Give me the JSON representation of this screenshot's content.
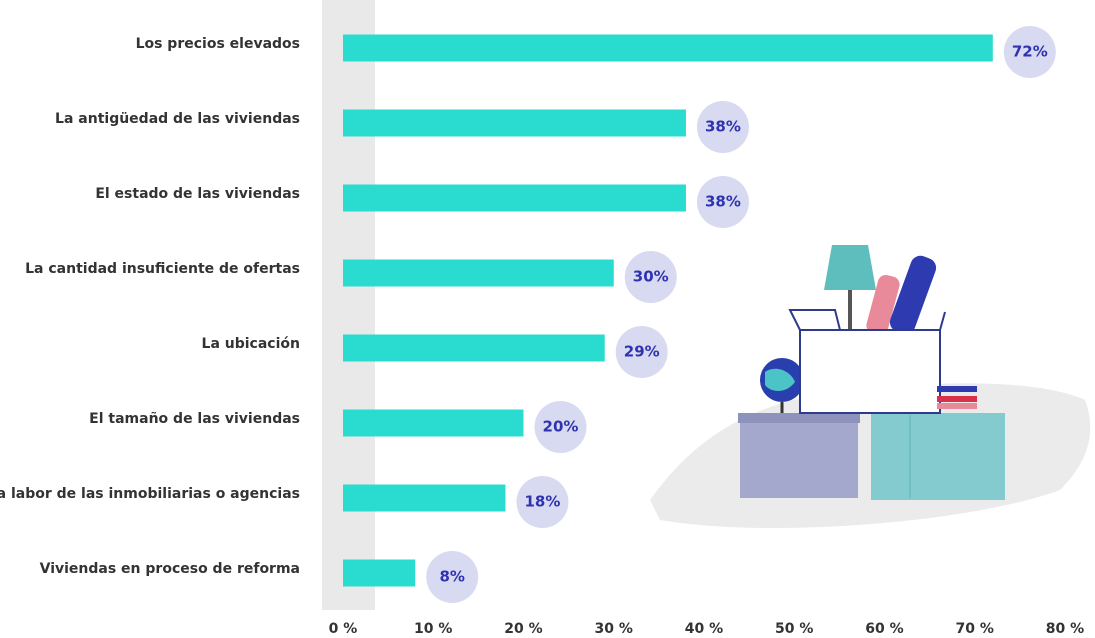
{
  "chart_data": {
    "type": "bar",
    "orientation": "horizontal",
    "categories": [
      "Los precios elevados",
      "La antigüedad de las viviendas",
      "El estado de las viviendas",
      "La cantidad insuficiente de ofertas",
      "La ubicación",
      "El tamaño de las viviendas",
      "La labor de las inmobiliarias o agencias",
      "Viviendas en proceso de reforma"
    ],
    "values": [
      72,
      38,
      38,
      30,
      29,
      20,
      18,
      8
    ],
    "value_labels": [
      "72%",
      "38%",
      "38%",
      "30%",
      "29%",
      "20%",
      "18%",
      "8%"
    ],
    "color": "#2adccf",
    "xlim": [
      0,
      80
    ],
    "xticks": [
      {
        "value": 0,
        "label": "0 %"
      },
      {
        "value": 10,
        "label": "10 %"
      },
      {
        "value": 20,
        "label": "20 %"
      },
      {
        "value": 30,
        "label": "30 %"
      },
      {
        "value": 40,
        "label": "40 %"
      },
      {
        "value": 50,
        "label": "50 %"
      },
      {
        "value": 60,
        "label": "60 %"
      },
      {
        "value": 70,
        "label": "70 %"
      },
      {
        "value": 80,
        "label": "80 %"
      }
    ],
    "grid": false
  }
}
